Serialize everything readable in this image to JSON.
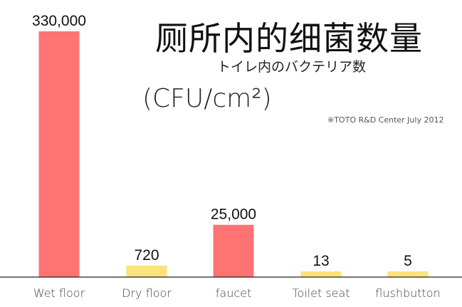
{
  "chart_data": {
    "type": "bar",
    "title": "厕所内的细菌数量",
    "subtitle": "トイレ内のバクテリア数",
    "unit": "(CFU/cm²)",
    "source": "※TOTO R&D Center July 2012",
    "categories": [
      "Wet floor",
      "Dry floor",
      "faucet",
      "Toilet seat",
      "flushbutton"
    ],
    "values": [
      330000,
      720,
      25000,
      13,
      5
    ],
    "data_labels": [
      "330,000",
      "720",
      "25,000",
      "13",
      "5"
    ],
    "bar_colors": [
      "#ff7373",
      "#fbe27a",
      "#ff7373",
      "#fbe27a",
      "#fbe27a"
    ],
    "scale": "non-linear (visually compressed)",
    "grid": false,
    "legend": "none"
  }
}
